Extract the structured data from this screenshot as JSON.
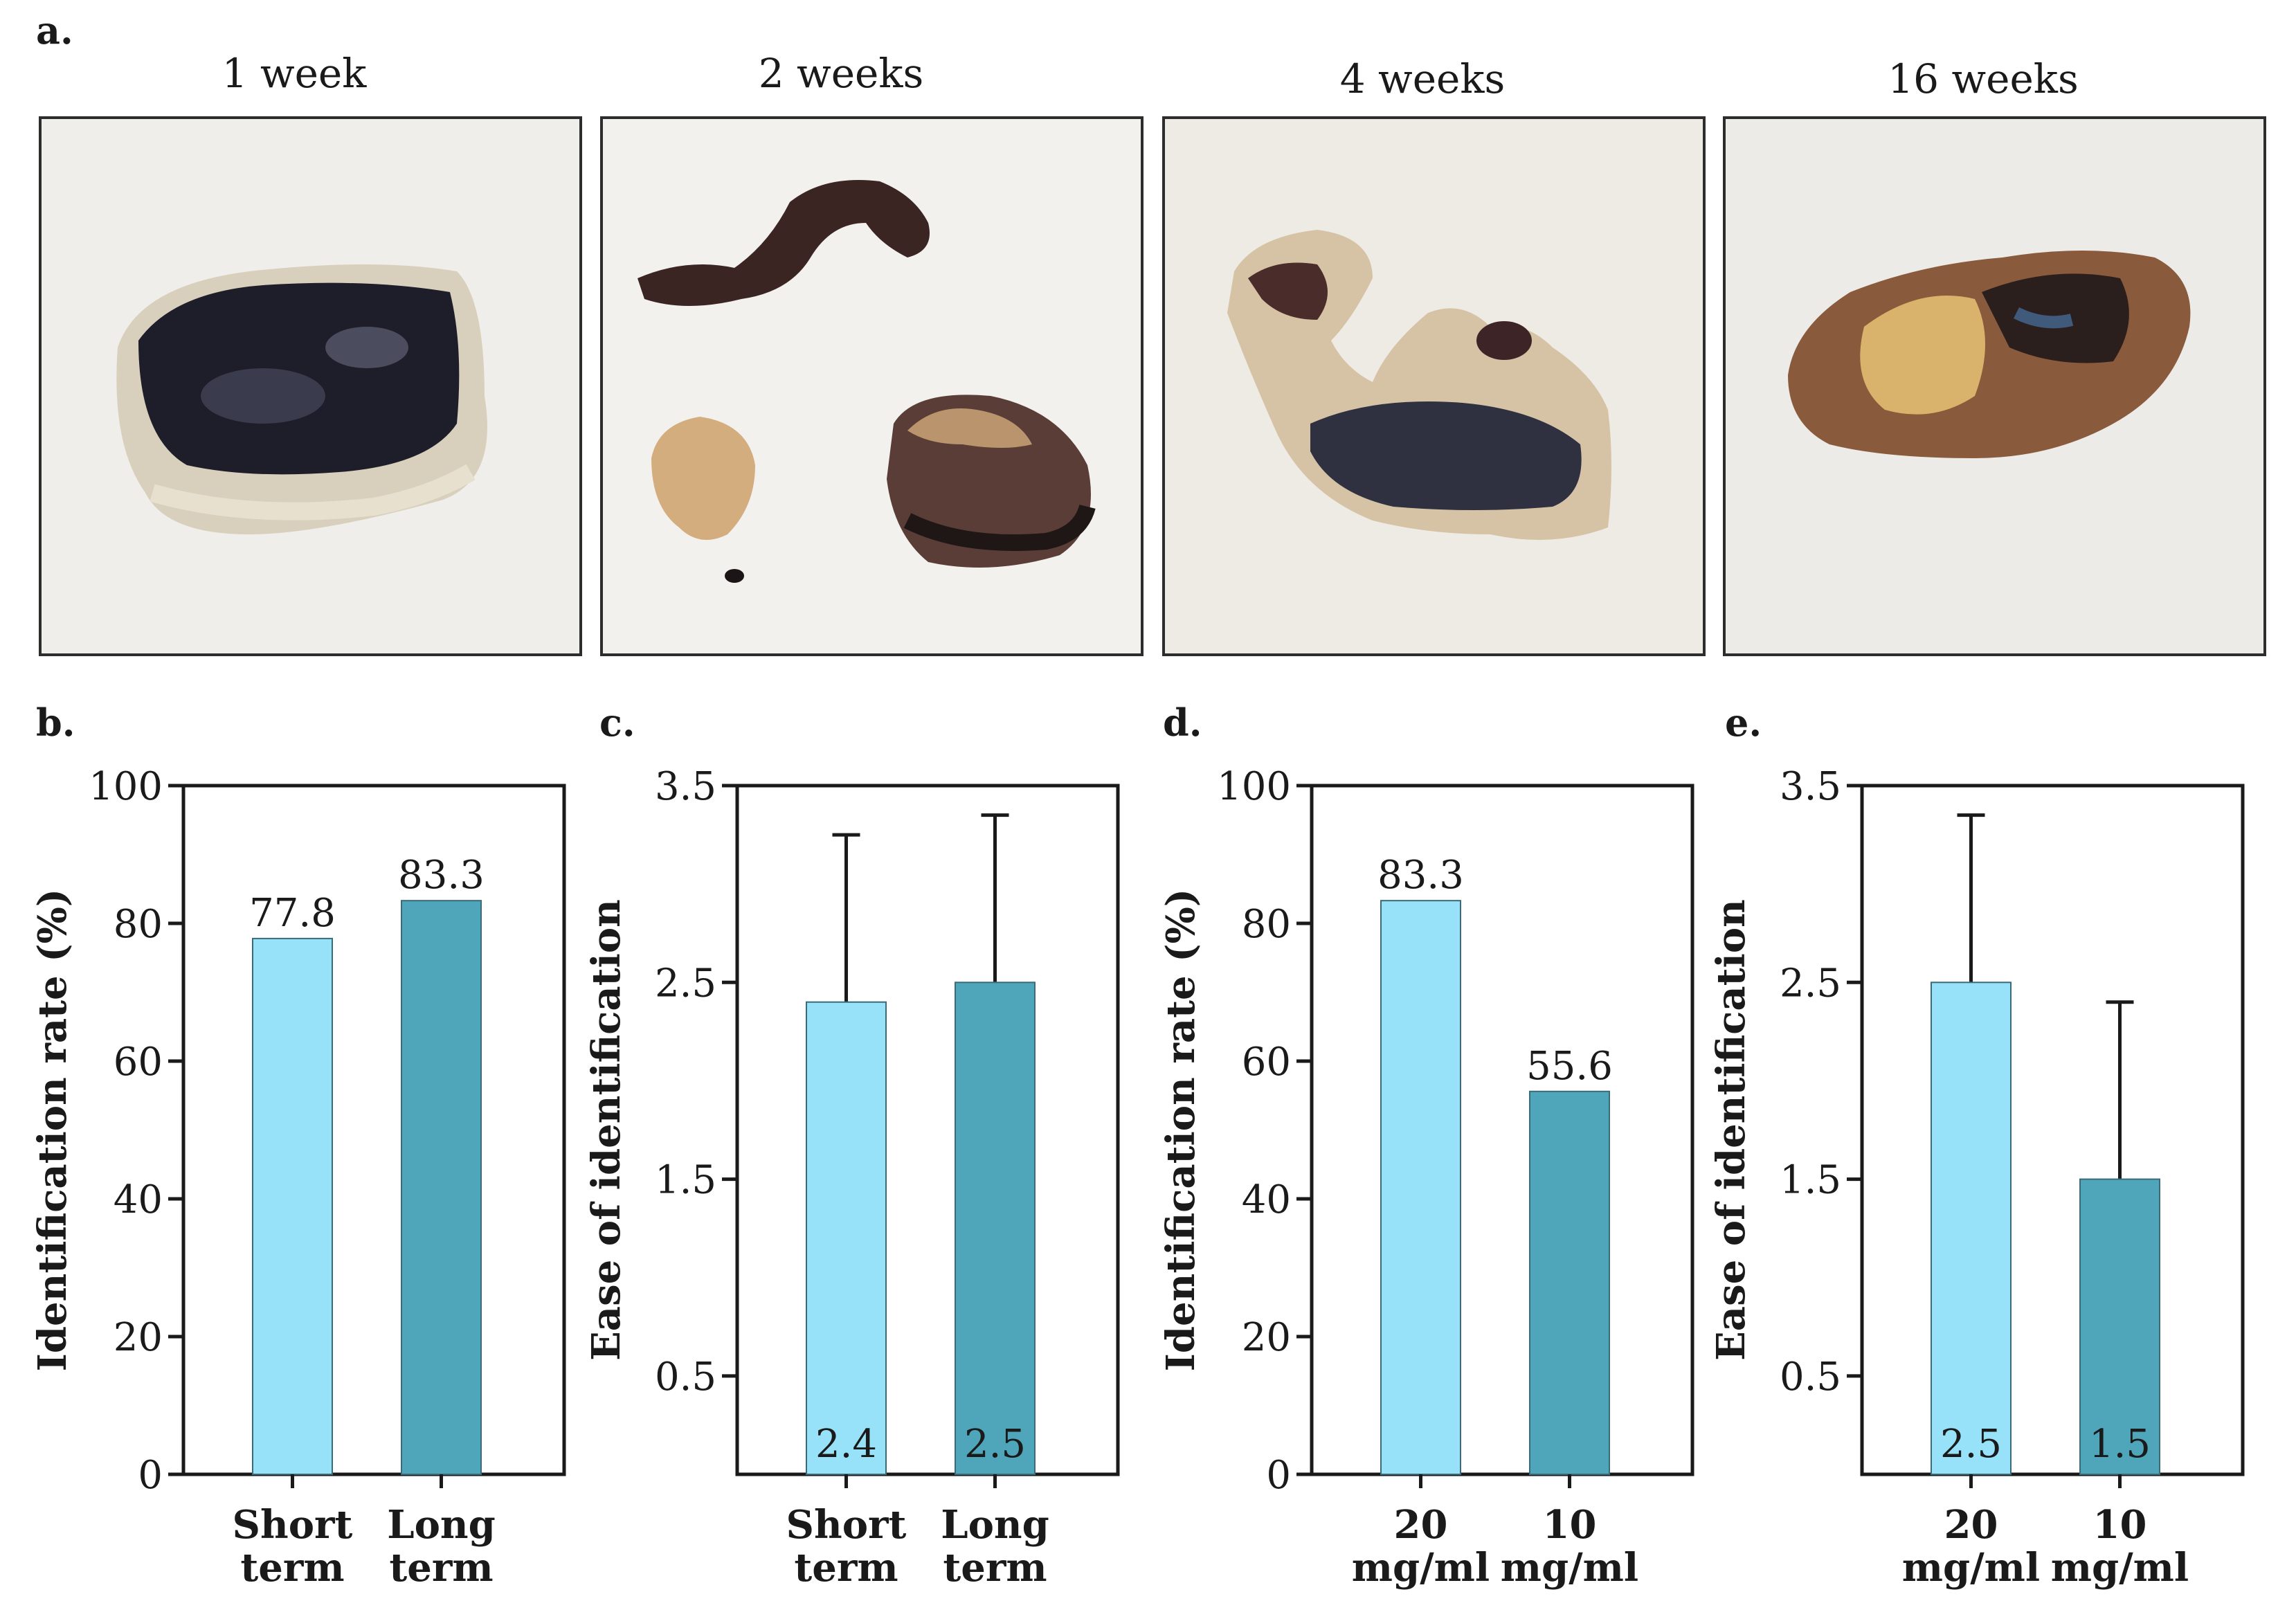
{
  "panels": {
    "a_letter": "a.",
    "b_letter": "b.",
    "c_letter": "c.",
    "d_letter": "d.",
    "e_letter": "e."
  },
  "photos": [
    {
      "title": "1 week"
    },
    {
      "title": "2 weeks"
    },
    {
      "title": "4 weeks"
    },
    {
      "title": "16 weeks"
    }
  ],
  "colors": {
    "light_bar": "#97E1F9",
    "dark_bar": "#4FA6BB",
    "axis": "#1a1a1a",
    "photo_bg": "#f1efea"
  },
  "chart_data": [
    {
      "panel": "b",
      "type": "bar",
      "categories": [
        [
          "Short",
          "term"
        ],
        [
          "Long",
          "term"
        ]
      ],
      "values": [
        77.8,
        83.3
      ],
      "value_labels": [
        "77.8",
        "83.3"
      ],
      "value_label_position": "above",
      "ylabel": "Identification rate (%)",
      "ylim": [
        0,
        100
      ],
      "yticks": [
        0,
        20,
        40,
        60,
        80,
        100
      ],
      "ytick_labels": [
        "0",
        "20",
        "40",
        "60",
        "80",
        "100"
      ],
      "error_bars": null
    },
    {
      "panel": "c",
      "type": "bar",
      "categories": [
        [
          "Short",
          "term"
        ],
        [
          "Long",
          "term"
        ]
      ],
      "values": [
        2.4,
        2.5
      ],
      "value_labels": [
        "2.4",
        "2.5"
      ],
      "value_label_position": "bottom",
      "error_upper": [
        3.25,
        3.35
      ],
      "ylabel": "Ease of identification",
      "ylim": [
        0,
        3.5
      ],
      "yticks": [
        0.5,
        1.5,
        2.5,
        3.5
      ],
      "ytick_labels": [
        "0.5",
        "1.5",
        "2.5",
        "3.5"
      ]
    },
    {
      "panel": "d",
      "type": "bar",
      "categories": [
        [
          "20",
          "mg/ml"
        ],
        [
          "10",
          "mg/ml"
        ]
      ],
      "values": [
        83.3,
        55.6
      ],
      "value_labels": [
        "83.3",
        "55.6"
      ],
      "value_label_position": "above",
      "ylabel": "Identification rate (%)",
      "ylim": [
        0,
        100
      ],
      "yticks": [
        0,
        20,
        40,
        60,
        80,
        100
      ],
      "ytick_labels": [
        "0",
        "20",
        "40",
        "60",
        "80",
        "100"
      ],
      "error_bars": null
    },
    {
      "panel": "e",
      "type": "bar",
      "categories": [
        [
          "20",
          "mg/ml"
        ],
        [
          "10",
          "mg/ml"
        ]
      ],
      "values": [
        2.5,
        1.5
      ],
      "value_labels": [
        "2.5",
        "1.5"
      ],
      "value_label_position": "bottom",
      "error_upper": [
        3.35,
        2.4
      ],
      "ylabel": "Ease of identification",
      "ylim": [
        0,
        3.5
      ],
      "yticks": [
        0.5,
        1.5,
        2.5,
        3.5
      ],
      "ytick_labels": [
        "0.5",
        "1.5",
        "2.5",
        "3.5"
      ]
    }
  ]
}
